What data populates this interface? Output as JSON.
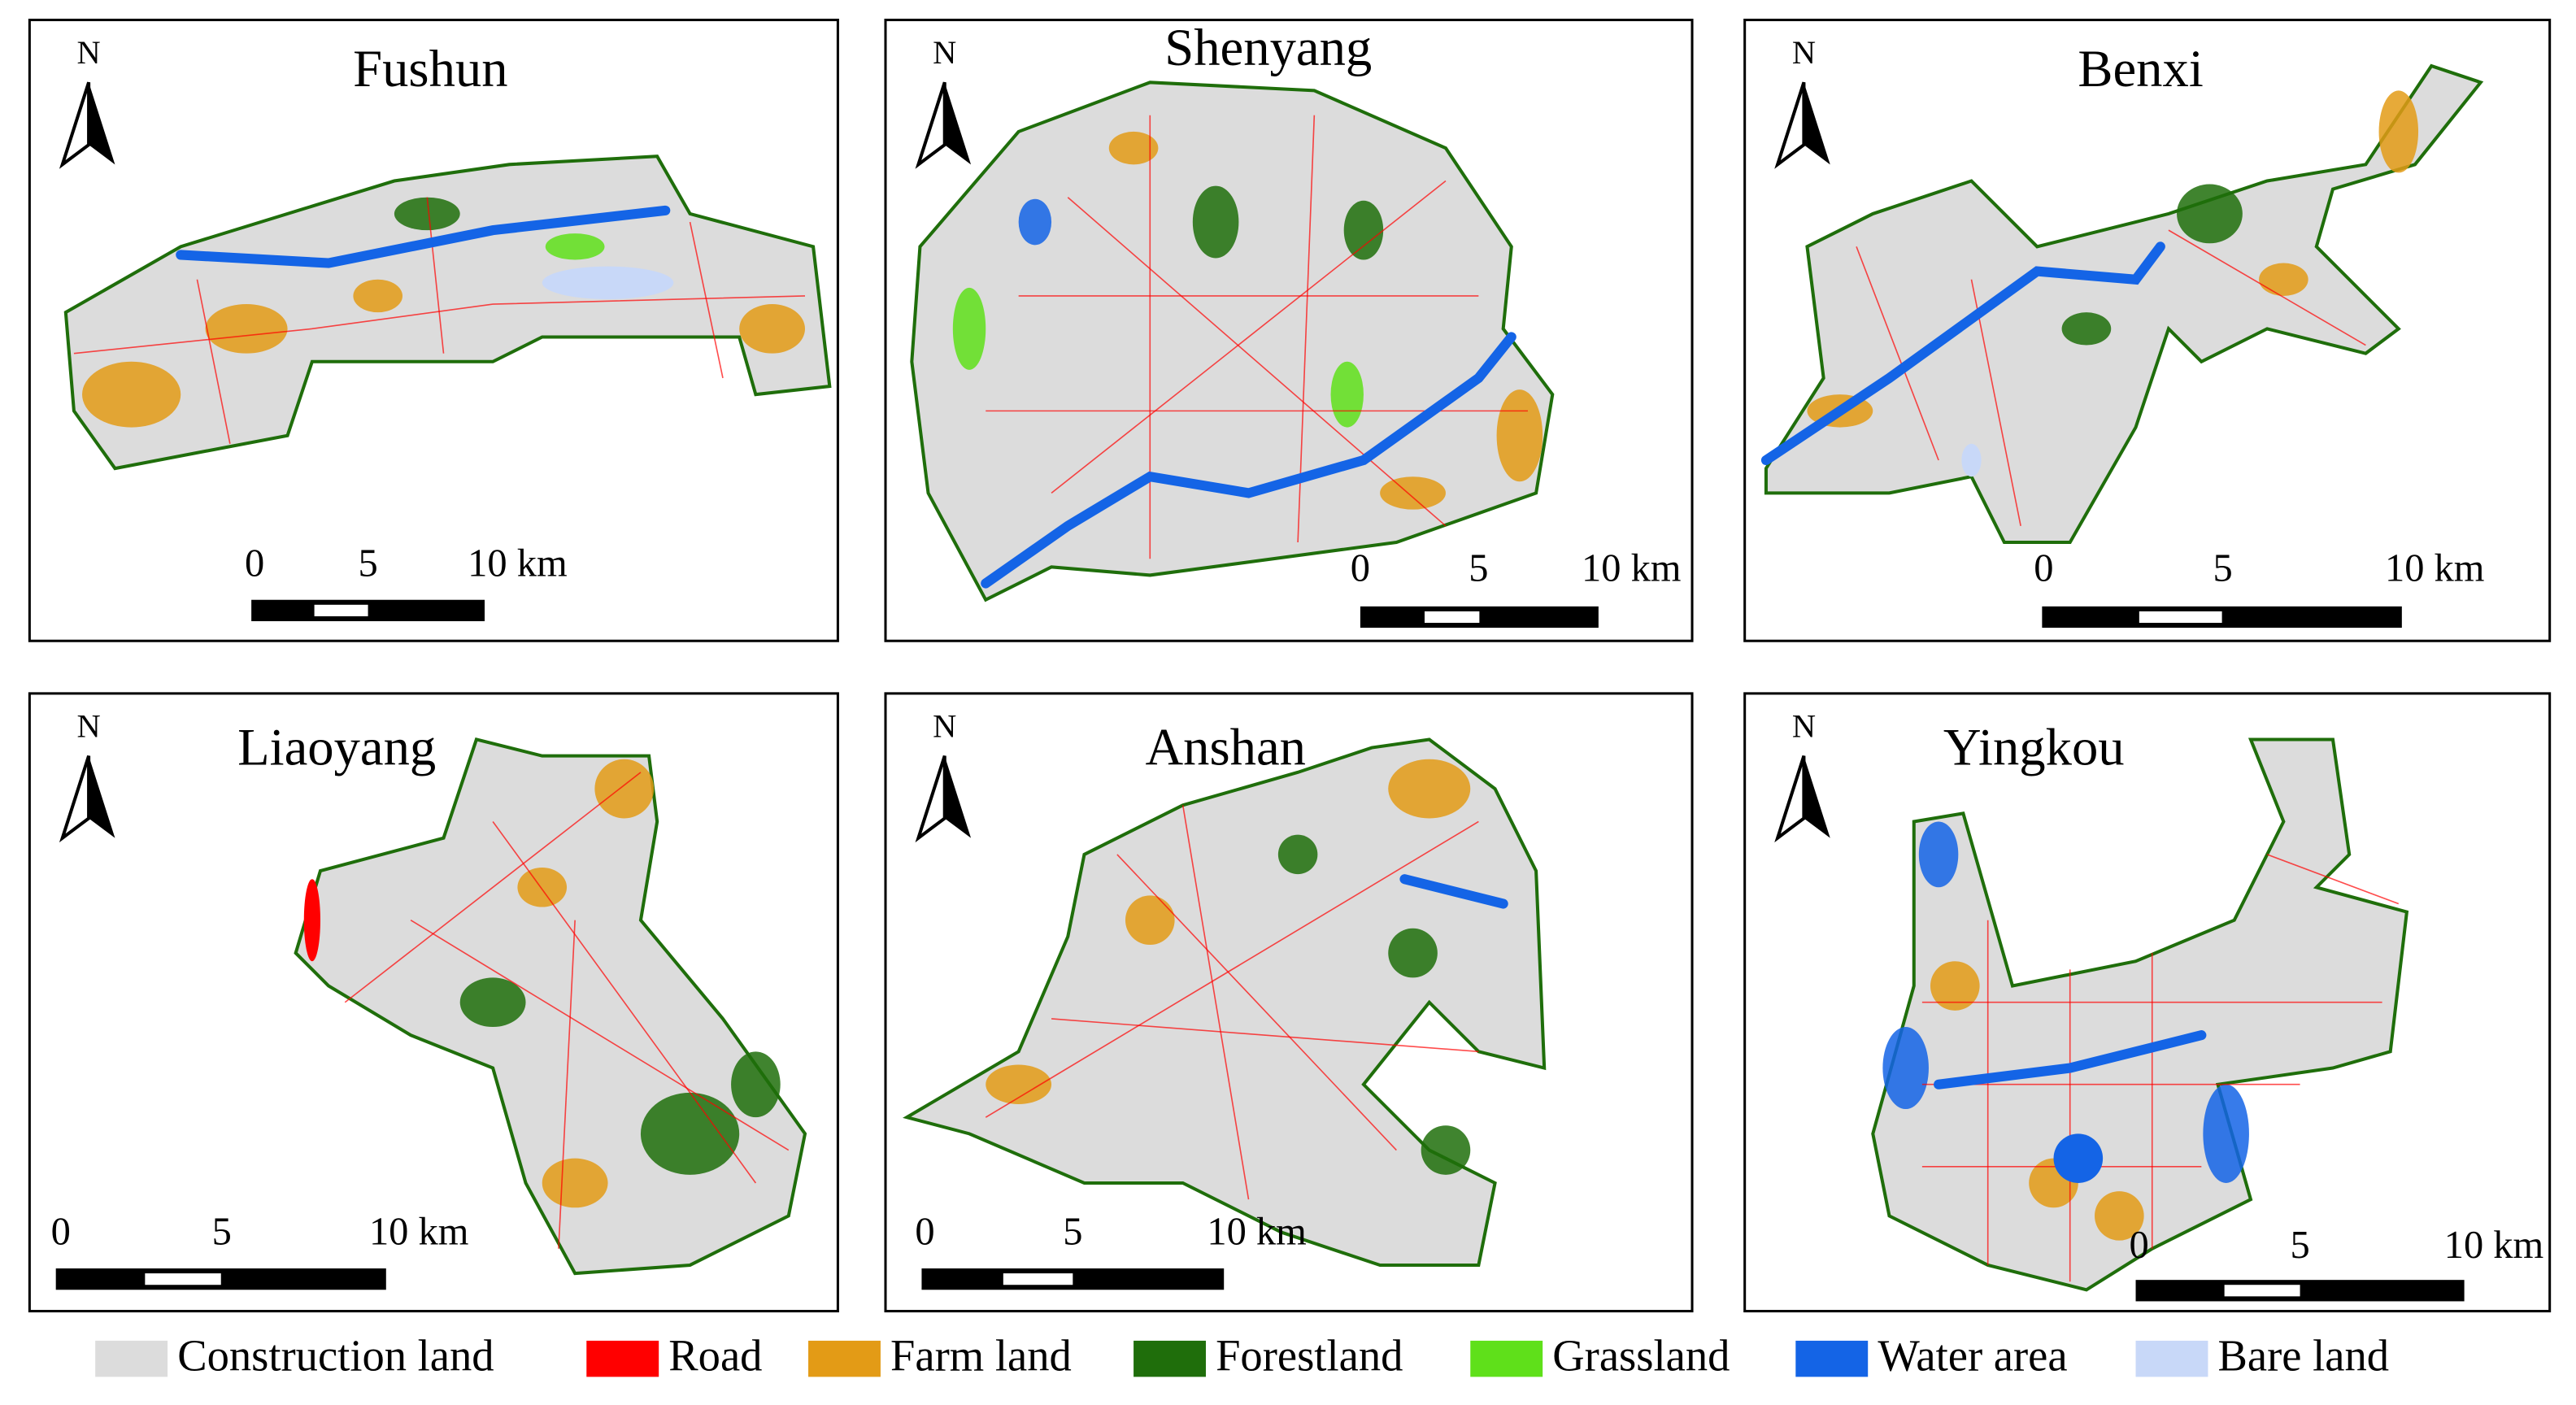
{
  "panels": [
    {
      "title": "Fushun"
    },
    {
      "title": "Shenyang"
    },
    {
      "title": "Benxi"
    },
    {
      "title": "Liaoyang"
    },
    {
      "title": "Anshan"
    },
    {
      "title": "Yingkou"
    }
  ],
  "north_label": "N",
  "scale_bar": {
    "labels": [
      "0",
      "5",
      "10 km"
    ]
  },
  "legend": [
    {
      "label": "Construction land",
      "color": "#dcdcdc"
    },
    {
      "label": "Road",
      "color": "#ff0000"
    },
    {
      "label": "Farm land",
      "color": "#e39b16"
    },
    {
      "label": "Forestland",
      "color": "#1f6e0b"
    },
    {
      "label": "Grassland",
      "color": "#5fe01a"
    },
    {
      "label": "Water area",
      "color": "#1464e6"
    },
    {
      "label": "Bare land",
      "color": "#c8d8f8"
    }
  ]
}
